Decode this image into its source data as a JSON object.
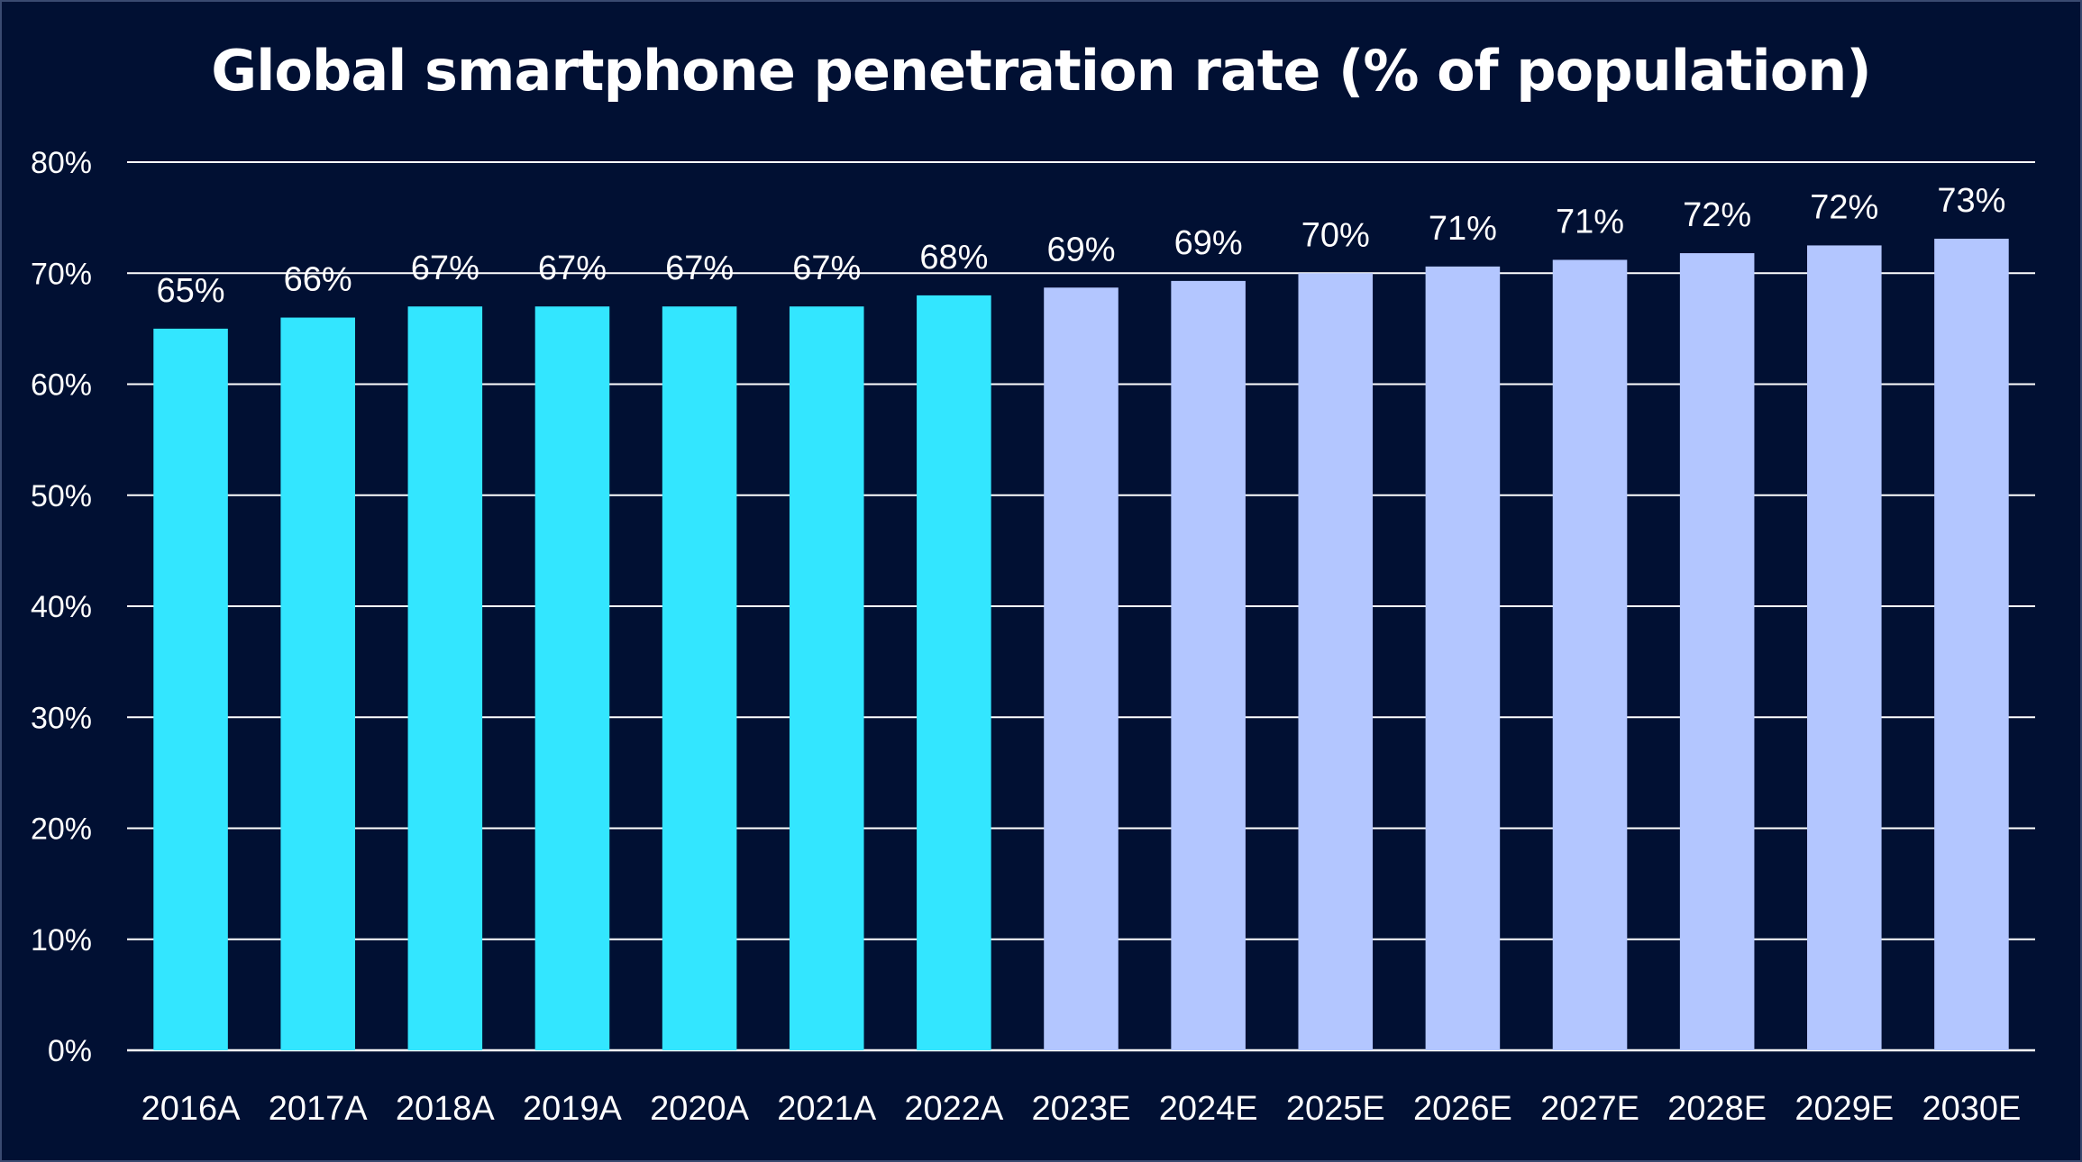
{
  "chart_data": {
    "type": "bar",
    "title": "Global smartphone penetration rate (% of population)",
    "xlabel": "",
    "ylabel": "",
    "ylim": [
      0,
      80
    ],
    "ytick_step": 10,
    "ytick_suffix": "%",
    "grid": true,
    "legend": "none",
    "categories": [
      "2016A",
      "2017A",
      "2018A",
      "2019A",
      "2020A",
      "2021A",
      "2022A",
      "2023E",
      "2024E",
      "2025E",
      "2026E",
      "2027E",
      "2028E",
      "2029E",
      "2030E"
    ],
    "values": [
      65,
      66,
      67,
      67,
      67,
      67,
      68,
      68.7,
      69.3,
      70,
      70.6,
      71.2,
      71.8,
      72.5,
      73.1
    ],
    "data_labels": [
      "65%",
      "66%",
      "67%",
      "67%",
      "67%",
      "67%",
      "68%",
      "69%",
      "69%",
      "70%",
      "71%",
      "71%",
      "72%",
      "72%",
      "73%"
    ],
    "colors": {
      "background": "#011033",
      "actual": "#33e6ff",
      "estimate": "#b3c6ff",
      "grid": "#ffffff",
      "text": "#ffffff"
    },
    "actual_count": 7
  }
}
